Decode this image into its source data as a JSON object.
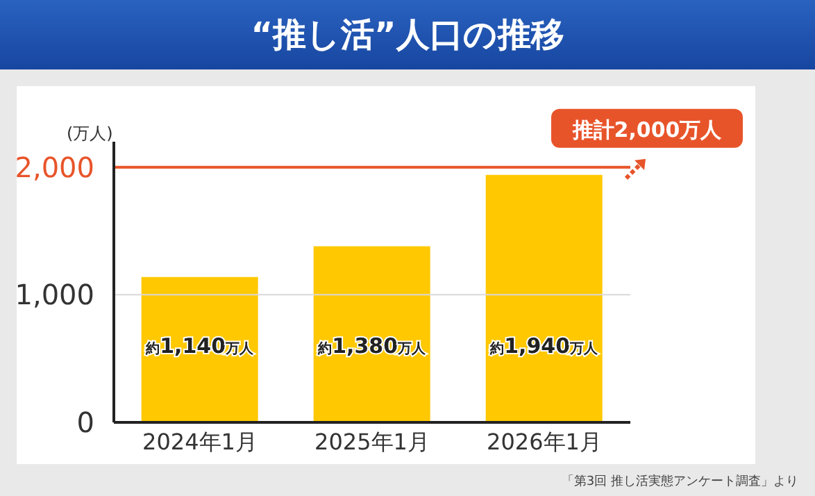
{
  "chart_data": {
    "type": "bar",
    "title": "“推し活”人口の推移",
    "ylabel": "(万人)",
    "categories": [
      "2024年1月",
      "2025年1月",
      "2026年1月"
    ],
    "values": [
      1140,
      1380,
      1940
    ],
    "color": "#ffc800",
    "value_labels": [
      "約1,140万人",
      "約1,380万人",
      "約1,940万人"
    ],
    "ylim": [
      0,
      2200
    ],
    "yticks": [
      0,
      {
        "value": 1000,
        "label": "1,000"
      },
      {
        "value": 2000,
        "label": "2,000"
      }
    ],
    "grid": false,
    "ref_lines": [
      {
        "axis": "y",
        "value": 1000,
        "color": "#d8d8d8"
      },
      {
        "axis": "y",
        "value": 2000,
        "label": "推計2,000万人",
        "color": "#e8542a"
      }
    ],
    "annotations": [
      "「第3回 推し活実態アンケート調査」より"
    ]
  }
}
